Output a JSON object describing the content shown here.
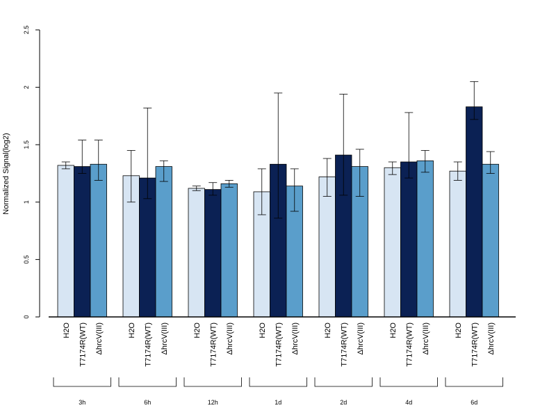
{
  "chart_data": {
    "type": "bar",
    "ylabel": "Normalized Signal(log2)",
    "ylim": [
      0,
      2.5
    ],
    "yticks": [
      "0",
      "0.5",
      "1",
      "1.5",
      "2",
      "2.5"
    ],
    "groups": [
      "3h",
      "6h",
      "12h",
      "1d",
      "2d",
      "4d",
      "6d"
    ],
    "series": [
      {
        "name": "H2O",
        "color": "#d7e5f3",
        "values": [
          1.32,
          1.23,
          1.12,
          1.09,
          1.22,
          1.3,
          1.27
        ],
        "err_low": [
          1.29,
          1.0,
          1.1,
          0.89,
          1.05,
          1.24,
          1.19
        ],
        "err_high": [
          1.35,
          1.45,
          1.14,
          1.29,
          1.38,
          1.35,
          1.35
        ]
      },
      {
        "name": "T7174R(WT)",
        "color": "#0b2154",
        "values": [
          1.31,
          1.21,
          1.11,
          1.33,
          1.41,
          1.35,
          1.83
        ],
        "err_low": [
          1.25,
          1.03,
          1.06,
          0.86,
          1.06,
          1.21,
          1.72
        ],
        "err_high": [
          1.54,
          1.82,
          1.17,
          1.95,
          1.94,
          1.78,
          2.05
        ]
      },
      {
        "name": "ΔhrcV(III)",
        "color": "#5a9ecb",
        "values": [
          1.33,
          1.31,
          1.16,
          1.14,
          1.31,
          1.36,
          1.33
        ],
        "err_low": [
          1.19,
          1.18,
          1.13,
          0.92,
          1.05,
          1.26,
          1.25
        ],
        "err_high": [
          1.54,
          1.36,
          1.19,
          1.29,
          1.46,
          1.45,
          1.44
        ]
      }
    ]
  }
}
